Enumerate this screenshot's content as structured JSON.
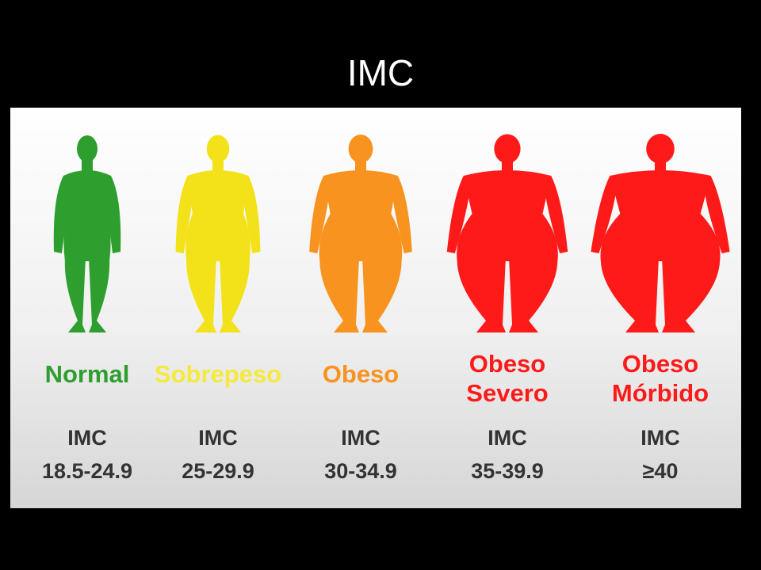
{
  "title": "IMC",
  "categories": [
    {
      "label_lines": [
        "Normal"
      ],
      "color": "#2e9e2e",
      "index_label": "IMC",
      "range": "18.5-24.9"
    },
    {
      "label_lines": [
        "Sobrepeso"
      ],
      "color": "#f3e21a",
      "index_label": "IMC",
      "range": "25-29.9"
    },
    {
      "label_lines": [
        "Obeso"
      ],
      "color": "#f7931e",
      "index_label": "IMC",
      "range": "30-34.9"
    },
    {
      "label_lines": [
        "Obeso",
        "Severo"
      ],
      "color": "#ff1a1a",
      "index_label": "IMC",
      "range": "35-39.9"
    },
    {
      "label_lines": [
        "Obeso",
        "Mórbido"
      ],
      "color": "#ff1a1a",
      "index_label": "IMC",
      "range": "≥40"
    }
  ]
}
